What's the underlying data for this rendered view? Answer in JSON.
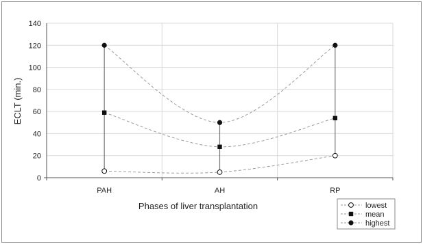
{
  "chart_data": {
    "type": "line",
    "title": "",
    "xlabel": "Phases of liver transplantation",
    "ylabel": "ECLT (min.)",
    "categories": [
      "PAH",
      "AH",
      "RP"
    ],
    "ylim": [
      0,
      140
    ],
    "yticks": [
      0,
      20,
      40,
      60,
      80,
      100,
      120,
      140
    ],
    "grid": true,
    "legend_position": "bottom-right",
    "series": [
      {
        "name": "lowest",
        "marker": "open-circle",
        "values": [
          6,
          5,
          20
        ]
      },
      {
        "name": "mean",
        "marker": "filled-square",
        "values": [
          59,
          28,
          54
        ]
      },
      {
        "name": "highest",
        "marker": "filled-circle",
        "values": [
          120,
          50,
          120
        ]
      }
    ],
    "colors": {
      "grid": "#d9d9d9",
      "curve": "#9a9a9a",
      "range_bar": "#7a7a7a",
      "marker": "#111111",
      "frame": "#8a8a8a"
    }
  }
}
